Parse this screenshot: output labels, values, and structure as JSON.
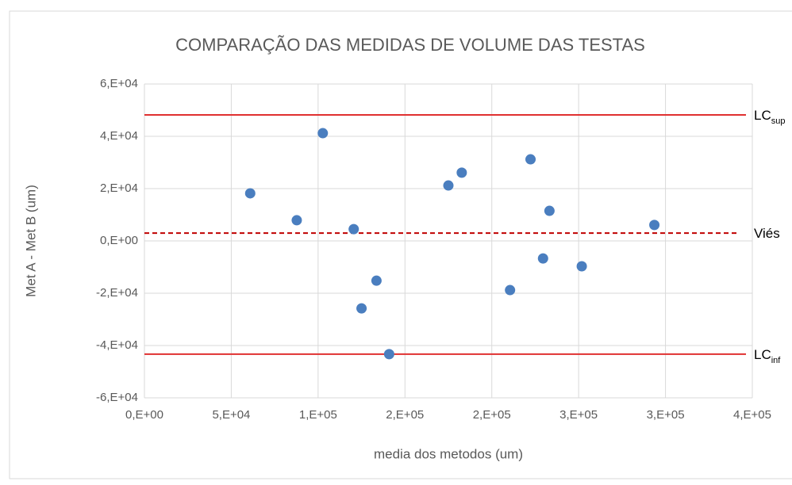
{
  "chart_data": {
    "type": "scatter",
    "title": "COMPARAÇÃO DAS MEDIDAS DE VOLUME DAS TESTAS",
    "x_label": "media dos metodos (um)",
    "y_label": "Met A - Met B (um)",
    "color": "#4a7ebf",
    "grid": true,
    "xlim": [
      0,
      350000
    ],
    "ylim": [
      -60000,
      60000
    ],
    "xticks": [
      {
        "value": 0,
        "label": "0,E+00"
      },
      {
        "value": 50000,
        "label": "5,E+04"
      },
      {
        "value": 100000,
        "label": "1,E+05"
      },
      {
        "value": 150000,
        "label": "2,E+05"
      },
      {
        "value": 200000,
        "label": "2,E+05"
      },
      {
        "value": 250000,
        "label": "3,E+05"
      },
      {
        "value": 300000,
        "label": "3,E+05"
      },
      {
        "value": 350000,
        "label": "4,E+05"
      }
    ],
    "yticks": [
      {
        "value": -60000,
        "label": "-6,E+04"
      },
      {
        "value": -40000,
        "label": "-4,E+04"
      },
      {
        "value": -20000,
        "label": "-2,E+04"
      },
      {
        "value": 0,
        "label": "0,E+00"
      },
      {
        "value": 20000,
        "label": "2,E+04"
      },
      {
        "value": 40000,
        "label": "4,E+04"
      },
      {
        "value": 60000,
        "label": "6,E+04"
      }
    ],
    "x": [
      60900,
      87700,
      102700,
      120500,
      133600,
      125000,
      140900,
      175000,
      182700,
      210500,
      222300,
      229500,
      233200,
      251800,
      293600
    ],
    "values": [
      18200,
      7900,
      41200,
      4500,
      -15200,
      -25800,
      -43300,
      21200,
      26100,
      -18800,
      31200,
      -6700,
      11500,
      -9700,
      6100
    ],
    "reference_lines": [
      {
        "value": 48200,
        "label": "LC",
        "sub": "sup",
        "style": "solid",
        "color": "#e03030"
      },
      {
        "value": 3000,
        "label": "Viés",
        "style": "dashed",
        "color": "#c00000"
      },
      {
        "value": -43300,
        "label": "LC",
        "sub": "inf",
        "style": "solid",
        "color": "#e03030"
      }
    ]
  }
}
